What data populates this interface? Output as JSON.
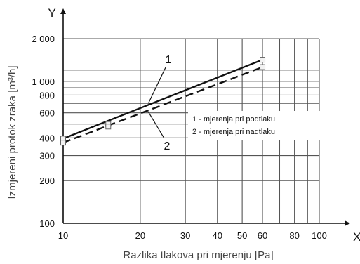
{
  "chart_data": {
    "type": "line",
    "x_scale": "log",
    "y_scale": "log",
    "xlim": [
      10,
      100
    ],
    "ylim": [
      100,
      2000
    ],
    "x_ticks": [
      10,
      20,
      30,
      40,
      50,
      60,
      80,
      100
    ],
    "x_tick_labels": [
      "10",
      "20",
      "30",
      "40",
      "50",
      "60",
      "80",
      "100"
    ],
    "y_ticks": [
      100,
      200,
      300,
      400,
      600,
      800,
      1000,
      2000
    ],
    "y_tick_labels": [
      "100",
      "200",
      "300",
      "400",
      "600",
      "800",
      "1 000",
      "2 000"
    ],
    "x_minor_grid": [
      70,
      90
    ],
    "y_minor_grid": [
      500,
      700,
      900,
      1200
    ],
    "x_axis_letter": "X",
    "y_axis_letter": "Y",
    "xlabel": "Razlika tlakova pri mjerenju [Pa]",
    "ylabel": "Izmjereni protok zraka [m³/h]",
    "grid": true,
    "legend_position": "center-right",
    "series": [
      {
        "name": "1 - mjerenja pri podtlaku",
        "callout": "1",
        "style": "solid",
        "color": "#111111",
        "x": [
          10,
          60
        ],
        "y": [
          395,
          1420
        ],
        "points_x": [
          10,
          15,
          60
        ],
        "points_y": [
          395,
          500,
          1420
        ]
      },
      {
        "name": "2 - mjerenja pri nadtlaku",
        "callout": "2",
        "style": "dashed",
        "color": "#111111",
        "x": [
          10,
          60
        ],
        "y": [
          370,
          1260
        ],
        "points_x": [
          10,
          15,
          60
        ],
        "points_y": [
          370,
          480,
          1260
        ]
      }
    ]
  }
}
